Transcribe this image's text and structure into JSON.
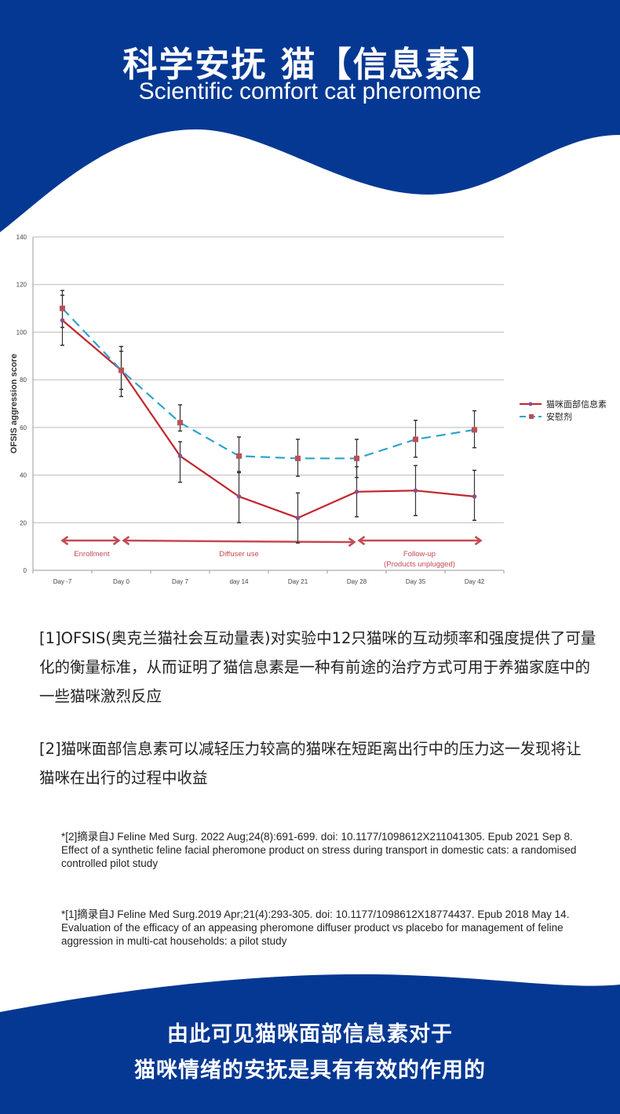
{
  "header": {
    "title": "科学安抚 猫【信息素】",
    "subtitle": "Scientific comfort cat pheromone"
  },
  "colors": {
    "brand_blue": "#053893",
    "pheromone_line": "#c0262e",
    "placebo_line": "#2ea3cf",
    "phase_arrow": "#c44a52"
  },
  "chart_data": {
    "type": "line",
    "ylabel": "OFSIS aggression score",
    "xlabel": "",
    "ylim": [
      0,
      140
    ],
    "yticks": [
      0,
      20,
      40,
      60,
      80,
      100,
      120,
      140
    ],
    "grid": true,
    "legend_position": "right",
    "categories": [
      "Day -7",
      "Day 0",
      "Day 7",
      "day 14",
      "Day 21",
      "Day 28",
      "Day 35",
      "Day 42"
    ],
    "series": [
      {
        "name": "猫咪面部信息素",
        "values": [
          105,
          84,
          48,
          31,
          22,
          33,
          33.5,
          31
        ],
        "error_low": [
          94.5,
          73,
          37,
          20,
          11.5,
          22.5,
          23,
          21
        ],
        "error_high": [
          115.5,
          92,
          54,
          41.5,
          32.5,
          43.5,
          44,
          42
        ]
      },
      {
        "name": "安慰剂",
        "values": [
          110,
          84,
          62,
          48,
          47,
          47,
          55,
          59
        ],
        "error_low": [
          102,
          76,
          58.5,
          41,
          39.5,
          39,
          47.5,
          51.5
        ],
        "error_high": [
          117.5,
          94,
          69.5,
          56,
          55,
          55,
          63,
          67
        ]
      }
    ],
    "phases": [
      {
        "label": "Enrollment",
        "from": 0,
        "to": 1
      },
      {
        "label": "Diffuser use",
        "from": 1,
        "to": 5
      },
      {
        "label": "Follow-up",
        "label2": "(Products unplugged)",
        "from": 5,
        "to": 7
      }
    ]
  },
  "body": {
    "para1": "[1]OFSIS(奥克兰猫社会互动量表)对实验中12只猫咪的互动频率和强度提供了可量化的衡量标准，从而证明了猫信息素是一种有前途的治疗方式可用于养猫家庭中的一些猫咪激烈反应",
    "para2": "[2]猫咪面部信息素可以减轻压力较高的猫咪在短距离出行中的压力这一发现将让猫咪在出行的过程中收益"
  },
  "references": [
    {
      "citation": "*[2]摘录自J Feline Med Surg. 2022 Aug;24(8):691-699. doi: 10.1177/1098612X211041305. Epub 2021 Sep 8.",
      "title": "Effect of a synthetic feline facial pheromone product on stress during transport in domestic cats: a randomised controlled pilot study"
    },
    {
      "citation": "*[1]摘录自J Feline Med Surg.2019 Apr;21(4):293-305. doi: 10.1177/1098612X18774437. Epub 2018 May 14.",
      "title": "Evaluation of the efficacy of an appeasing pheromone diffuser product vs placebo for management of feline aggression in multi-cat households: a pilot study"
    }
  ],
  "footer": {
    "line1": "由此可见猫咪面部信息素对于",
    "line2": "猫咪情绪的安抚是具有有效的作用的"
  }
}
